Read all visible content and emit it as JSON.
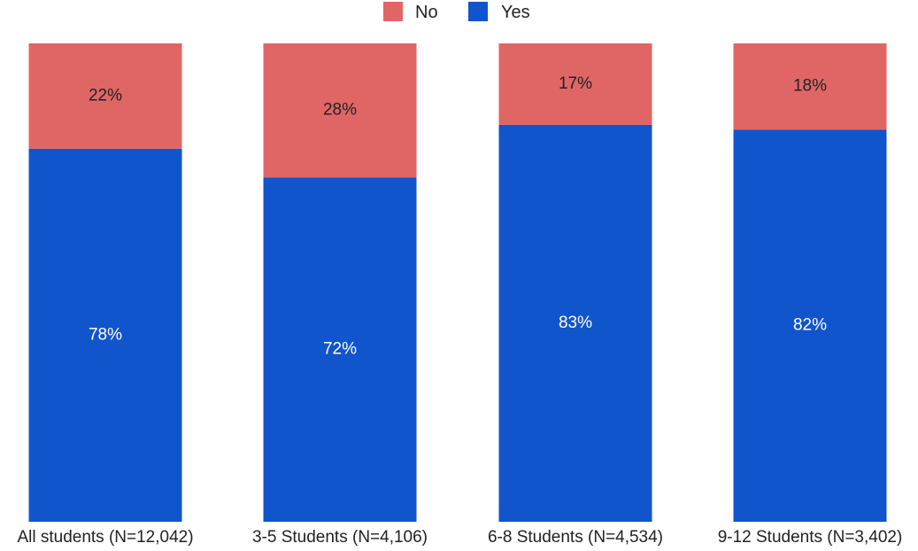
{
  "chart_data": {
    "type": "bar",
    "stacked": true,
    "categories": [
      "All students (N=12,042)",
      "3-5 Students (N=4,106)",
      "6-8 Students (N=4,534)",
      "9-12 Students (N=3,402)"
    ],
    "series": [
      {
        "name": "Yes",
        "values": [
          78,
          72,
          83,
          82
        ],
        "labels": [
          "78%",
          "72%",
          "83%",
          "82%"
        ],
        "color": "#1155cc"
      },
      {
        "name": "No",
        "values": [
          22,
          28,
          17,
          18
        ],
        "labels": [
          "22%",
          "28%",
          "17%",
          "18%"
        ],
        "color": "#e06666"
      }
    ],
    "legend_order": [
      "No",
      "Yes"
    ],
    "ylim": [
      0,
      100
    ],
    "legend_position": "top-center",
    "grid": false,
    "title": "",
    "xlabel": "",
    "ylabel": ""
  }
}
